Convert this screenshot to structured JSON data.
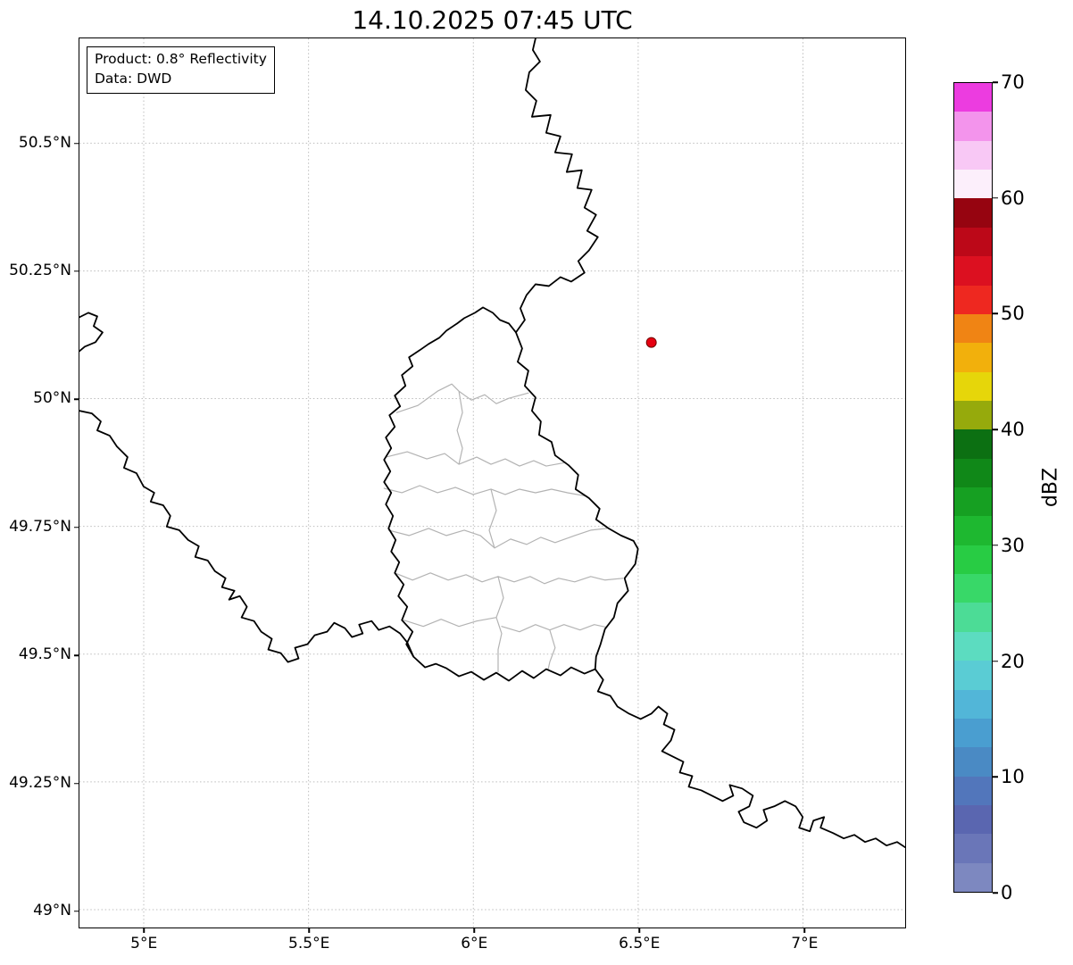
{
  "figure": {
    "title": "14.10.2025 07:45 UTC"
  },
  "info_box": {
    "line1": "Product: 0.8° Reflectivity",
    "line2": "Data: DWD"
  },
  "map": {
    "extent": {
      "lon_min": 4.805,
      "lon_max": 7.31,
      "lat_min": 48.965,
      "lat_max": 50.705
    },
    "x_ticks": [
      {
        "value": 5.0,
        "label": "5°E"
      },
      {
        "value": 5.5,
        "label": "5.5°E"
      },
      {
        "value": 6.0,
        "label": "6°E"
      },
      {
        "value": 6.5,
        "label": "6.5°E"
      },
      {
        "value": 7.0,
        "label": "7°E"
      }
    ],
    "y_ticks": [
      {
        "value": 50.5,
        "label": "50.5°N"
      },
      {
        "value": 50.25,
        "label": "50.25°N"
      },
      {
        "value": 50.0,
        "label": "50°N"
      },
      {
        "value": 49.75,
        "label": "49.75°N"
      },
      {
        "value": 49.5,
        "label": "49.5°N"
      },
      {
        "value": 49.25,
        "label": "49.25°N"
      },
      {
        "value": 49.0,
        "label": "49°N"
      }
    ],
    "marker": {
      "name": "radar-site",
      "lon": 6.54,
      "lat": 50.11,
      "color": "#e60011",
      "edge_color": "#700000"
    },
    "styles": {
      "country_border": "#000000",
      "district_border": "#b3b3b3",
      "grid": "#bdbdbd"
    }
  },
  "colorbar": {
    "label": "dBZ",
    "min": 0,
    "max": 70,
    "ticks": [
      0,
      10,
      20,
      30,
      40,
      50,
      60,
      70
    ],
    "colors_bottom_to_top": [
      "#7d88c0",
      "#6a76b8",
      "#5a66b0",
      "#5276bb",
      "#4a8ac4",
      "#4a9ed0",
      "#52b6d8",
      "#5accd4",
      "#5cdcc0",
      "#4cdc96",
      "#38d868",
      "#28cc44",
      "#1eb830",
      "#16a022",
      "#108818",
      "#0c7012",
      "#96aa0c",
      "#e6d60a",
      "#f2b00c",
      "#f08414",
      "#ee2820",
      "#dc1020",
      "#bc0818",
      "#960410",
      "#fceffb",
      "#f8c8f5",
      "#f394ec",
      "#ec3ce0"
    ]
  }
}
